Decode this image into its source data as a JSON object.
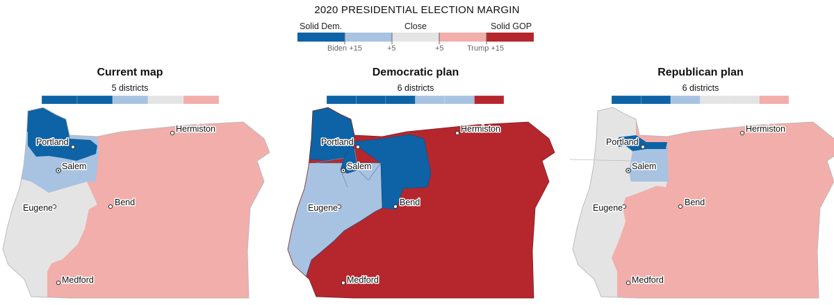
{
  "legend": {
    "title": "2020 PRESIDENTIAL ELECTION MARGIN",
    "labels": {
      "solid_dem": "Solid Dem.",
      "close": "Close",
      "solid_gop": "Solid GOP"
    },
    "ticks": {
      "biden15": "Biden +15",
      "dem5": "+5",
      "gop5": "+5",
      "trump15": "Trump +15"
    },
    "colors": {
      "solid_dem": "#0d63a5",
      "lean_dem": "#a8c3e1",
      "close": "#e4e4e4",
      "lean_gop": "#f2aeaa",
      "solid_gop": "#b5272d"
    }
  },
  "panels": [
    {
      "title": "Current map",
      "subtitle": "5 districts",
      "districts": [
        "solid_dem",
        "solid_dem",
        "lean_dem",
        "close",
        "lean_gop"
      ]
    },
    {
      "title": "Democratic plan",
      "subtitle": "6 districts",
      "districts": [
        "solid_dem",
        "solid_dem",
        "solid_dem",
        "lean_dem",
        "lean_dem",
        "solid_gop"
      ]
    },
    {
      "title": "Republican plan",
      "subtitle": "6 districts",
      "districts": [
        "solid_dem",
        "solid_dem",
        "lean_dem",
        "close",
        "close",
        "lean_gop"
      ]
    }
  ],
  "cities": {
    "portland": "Portland",
    "salem": "Salem",
    "eugene": "Eugene",
    "bend": "Bend",
    "medford": "Medford",
    "hermiston": "Hermiston"
  }
}
